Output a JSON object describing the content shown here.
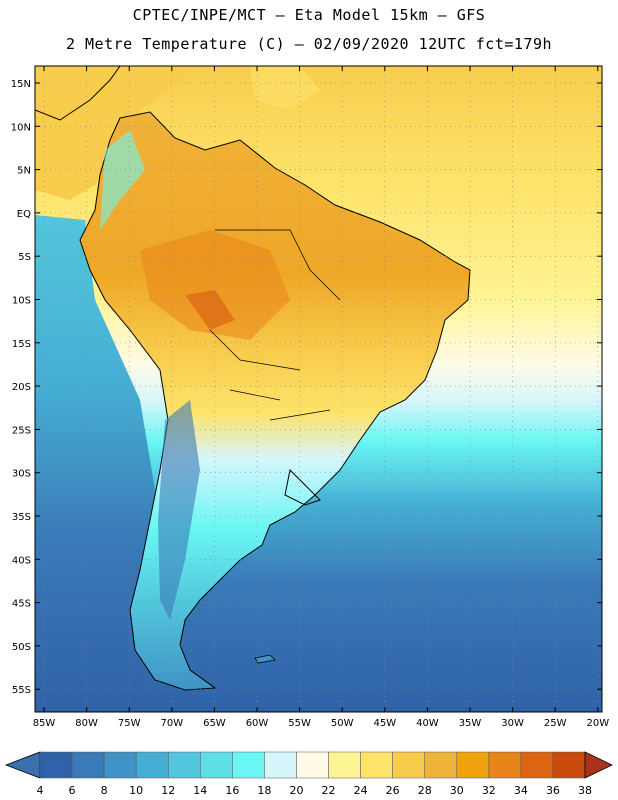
{
  "header": {
    "line1": "CPTEC/INPE/MCT –  Eta Model 15km – GFS",
    "line2": "2 Metre Temperature (C) – 02/09/2020 12UTC fct=179h"
  },
  "map": {
    "lat_labels": [
      "15N",
      "10N",
      "5N",
      "EQ",
      "5S",
      "10S",
      "15S",
      "20S",
      "25S",
      "30S",
      "35S",
      "40S",
      "45S",
      "50S",
      "55S"
    ],
    "lon_labels": [
      "85W",
      "80W",
      "75W",
      "70W",
      "65W",
      "60W",
      "55W",
      "50W",
      "45W",
      "40W",
      "35W",
      "30W",
      "25W",
      "20W"
    ]
  },
  "colorbar": {
    "labels": [
      "4",
      "6",
      "8",
      "10",
      "12",
      "14",
      "16",
      "18",
      "20",
      "22",
      "24",
      "26",
      "28",
      "30",
      "32",
      "34",
      "36",
      "38"
    ],
    "under_color": "#3a6fb0",
    "over_color": "#a8321a",
    "colors": [
      "#2f62a8",
      "#3a7ab8",
      "#3f93c6",
      "#45aed4",
      "#52c6dc",
      "#5edfe6",
      "#6af7f4",
      "#d6f6fb",
      "#fffbe6",
      "#fff494",
      "#fde36a",
      "#f8cd4e",
      "#efb53a",
      "#f0a20e",
      "#e8851a",
      "#dc6412",
      "#c84a0c"
    ]
  }
}
